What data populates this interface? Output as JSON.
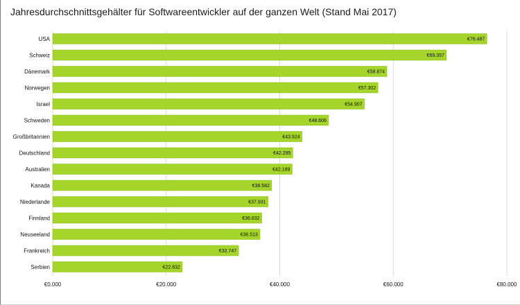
{
  "chart_data": {
    "type": "bar",
    "orientation": "horizontal",
    "title": "Jahresdurchschnittsgehälter für Softwareentwickler auf der ganzen Welt (Stand Mai 2017)",
    "categories": [
      "USA",
      "Schweiz",
      "Dänemark",
      "Norwegen",
      "Israel",
      "Schweden",
      "Großbritannien",
      "Deutschland",
      "Australien",
      "Kanada",
      "Niederlande",
      "Finnland",
      "Neuseeland",
      "Frankreich",
      "Serbien"
    ],
    "values": [
      76487,
      69357,
      58874,
      57302,
      54907,
      48606,
      43924,
      42295,
      42189,
      38582,
      37931,
      36832,
      36513,
      32747,
      22832
    ],
    "value_labels": [
      "€76.487",
      "€69.357",
      "€58.874",
      "€57.302",
      "€54.907",
      "€48.606",
      "€43.924",
      "€42.295",
      "€42.189",
      "€38.582",
      "€37.931",
      "€36.832",
      "€36.513",
      "€32.747",
      "€22.832"
    ],
    "xticks": [
      0,
      20000,
      40000,
      60000,
      80000
    ],
    "xtick_labels": [
      "€0.000",
      "€20.000",
      "€40.000",
      "€60.000",
      "€80.000"
    ],
    "xlim": [
      0,
      80000
    ],
    "xlabel": "",
    "ylabel": "",
    "grid": "vertical",
    "legend": "none",
    "bar_color": "#a5d42a",
    "bar_edge_color": "#8fbf1c"
  }
}
